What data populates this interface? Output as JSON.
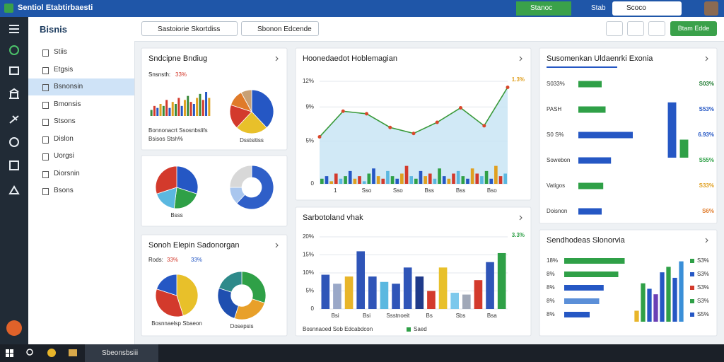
{
  "window": {
    "title": "Sentiol Etabtirbaesti",
    "tabs": [
      "Stanoc",
      "Stab",
      "Scoco"
    ]
  },
  "sidebar": {
    "title": "Bisnis",
    "items": [
      "Stiis",
      "Etgsis",
      "Bsnonsin",
      "Bmonsis",
      "Stsons",
      "Dislon",
      "Uorgsi",
      "Diorsnin",
      "Bsons"
    ],
    "selected": 2
  },
  "toolbar": {
    "dropdowns": [
      "Sastoiorie Skortdiss",
      "Sbonon Edcende"
    ],
    "button": "Btam Edde"
  },
  "taskbar": {
    "app": "Sbeonsbsiii"
  },
  "widgets": [
    {
      "title": "Sndcipne Bndiug",
      "texts": [
        {
          "text": "Snsnsth:",
          "color": "#222"
        },
        {
          "text": "33%",
          "color": "#d33a2c"
        },
        {
          "text": "Bonnonacrt Ssosnbslifs",
          "color": "#333"
        },
        {
          "text": "Bsisos Stsh%",
          "color": "#333"
        }
      ],
      "charts": [
        {
          "type": "bar",
          "values": [
            3,
            5,
            4,
            6,
            5,
            8,
            4,
            7,
            6,
            9,
            5,
            8,
            10,
            7,
            6,
            9,
            11,
            8,
            12,
            9
          ],
          "colors": [
            "#3a8a3a",
            "#d33a2c",
            "#2557c4",
            "#e0a020"
          ],
          "ylim": [
            0,
            12
          ]
        },
        {
          "type": "pie",
          "values": [
            38,
            24,
            18,
            12,
            8
          ],
          "colors": [
            "#2557c4",
            "#e8c02a",
            "#d33a2c",
            "#e07b2a",
            "#c8a074"
          ],
          "caption": "Dsstsitiss"
        }
      ]
    },
    {
      "title": "",
      "texts": [],
      "charts": [
        {
          "type": "pie",
          "values": [
            30,
            22,
            18,
            30
          ],
          "colors": [
            "#2557c4",
            "#2fa047",
            "#5bb8e0",
            "#d33a2c"
          ],
          "caption": "Bsss"
        },
        {
          "type": "pie",
          "donut": true,
          "values": [
            62,
            13,
            25
          ],
          "colors": [
            "#2f5fc8",
            "#a9c6ee",
            "#d8d8d8"
          ]
        }
      ]
    },
    {
      "title": "Sonoh Elepin Sadonorgan",
      "texts": [
        {
          "text": "Rods:",
          "color": "#222"
        },
        {
          "text": "33%",
          "color": "#d33a2c"
        },
        {
          "text": "33%",
          "color": "#2557c4"
        }
      ],
      "charts": [
        {
          "type": "pie",
          "values": [
            45,
            35,
            20
          ],
          "colors": [
            "#e8c02a",
            "#d33a2c",
            "#2557c4"
          ],
          "caption": "Bosnnaelsp Sbaeon"
        },
        {
          "type": "pie",
          "donut": true,
          "values": [
            30,
            25,
            25,
            20
          ],
          "colors": [
            "#2fa047",
            "#e8a02a",
            "#1f4fb0",
            "#2e8a8a"
          ],
          "caption": "Dosepsis"
        }
      ]
    },
    {
      "title": "Hoonedaedot Hoblemagian",
      "texts": [],
      "charts": [
        {
          "type": "line",
          "values": [
            5.5,
            8.5,
            8.2,
            6.6,
            5.9,
            7.2,
            8.9,
            6.8,
            11.3
          ],
          "color": "#3a9a3a",
          "fill": "#c6e3f4",
          "marker_color": "#d9482b",
          "ylim": [
            0,
            12
          ],
          "yticks": [
            0,
            {
              "value": 5,
              "label": "5%"
            },
            {
              "value": 9,
              "label": "9%"
            },
            {
              "value": 12,
              "label": "12%"
            }
          ],
          "x_labels": [
            "1",
            "Sso",
            "Sso",
            "Bss",
            "Bss",
            "Bso"
          ],
          "annotation": "1.3%",
          "annotation_color": "#e0a020"
        },
        {
          "type": "bar",
          "values": [
            2,
            3,
            1,
            4,
            2,
            3,
            5,
            2,
            3,
            1,
            4,
            6,
            3,
            2,
            5,
            3,
            2,
            4,
            7,
            3,
            2,
            5,
            3,
            4,
            2,
            6,
            3,
            2,
            4,
            5,
            3,
            2,
            6,
            4,
            3,
            5,
            2,
            7,
            3,
            4
          ],
          "colors": [
            "#2fa047",
            "#2557c4",
            "#e0a020",
            "#d33a2c",
            "#5bb8e0"
          ],
          "ylim": [
            0,
            40
          ]
        }
      ]
    },
    {
      "title": "Sarbotoland vhak",
      "texts": [
        {
          "text": "Bosnnaoed Sob Edcabdcon",
          "color": "#333"
        }
      ],
      "legend": [
        {
          "text": "Saed",
          "color": "#2fa047"
        }
      ],
      "charts": [
        {
          "type": "bar",
          "values": [
            9.5,
            7,
            9,
            16,
            9,
            7.5,
            7,
            11.5,
            9,
            5,
            11.5,
            4.5,
            4,
            8,
            13,
            15.5
          ],
          "colors": [
            "#2f55b8",
            "#9aa8c8",
            "#e8b52a",
            "#2f55b8",
            "#2f55b8",
            "#5bb8e0",
            "#2f55b8",
            "#2f55b8",
            "#1f3a8a",
            "#d33a2c",
            "#e8c02a",
            "#7cc8ec",
            "#a0a8b8",
            "#d33a2c",
            "#2f55b8",
            "#2fa047"
          ],
          "ylim": [
            0,
            20
          ],
          "yticks": [
            0,
            {
              "value": 5,
              "label": "5%"
            },
            {
              "value": 10,
              "label": "10%"
            },
            {
              "value": 15,
              "label": "15%"
            },
            {
              "value": 20,
              "label": "20%"
            }
          ],
          "x_labels": [
            "Bsi",
            "Bsi",
            "Ssstnoeit",
            "Bs",
            "Sbs",
            "Bsa"
          ],
          "annotation": "3.3%",
          "annotation_color": "#2fa047"
        }
      ]
    },
    {
      "title": "Susomenkan Uldaenrki Exonia",
      "texts": [],
      "charts": [
        {
          "type": "hbar_rows",
          "xlim": [
            0,
            100
          ],
          "rows": [
            {
              "label": "S033%",
              "value": 30,
              "color": "#2fa047",
              "pct": "S03%",
              "pct_color": "#1c7a2e"
            },
            {
              "label": "PASH",
              "value": 35,
              "color": "#2fa047",
              "pct": "S53%",
              "pct_color": "#2557c4"
            },
            {
              "label": "S0 S%",
              "value": 70,
              "color": "#2557c4",
              "pct": "6.93%",
              "pct_color": "#2557c4"
            },
            {
              "label": "Sowebon",
              "value": 42,
              "color": "#2557c4",
              "pct": "S55%",
              "pct_color": "#2fa047"
            },
            {
              "label": "Vatigos",
              "value": 32,
              "color": "#2fa047",
              "pct": "S33%",
              "pct_color": "#e0a020"
            },
            {
              "label": "Doisnon",
              "value": 30,
              "color": "#2557c4",
              "pct": "S6%",
              "pct_color": "#e07b2a"
            }
          ]
        },
        {
          "type": "bar",
          "values": [
            92,
            30
          ],
          "colors": [
            "#2557c4",
            "#2fa047"
          ],
          "ylim": [
            0,
            100
          ]
        }
      ]
    },
    {
      "title": "Sendhodeas Slonorvia",
      "texts": [],
      "legend": [
        {
          "text": "S3%",
          "color": "#2fa047"
        },
        {
          "text": "S3%",
          "color": "#2557c4"
        },
        {
          "text": "S3%",
          "color": "#d33a2c"
        },
        {
          "text": "S3%",
          "color": "#2fa047"
        },
        {
          "text": "S5%",
          "color": "#2557c4"
        }
      ],
      "charts": [
        {
          "type": "hbar_rows",
          "xlim": [
            0,
            100
          ],
          "rows": [
            {
              "label": "18%",
              "value": 95,
              "color": "#2fa047"
            },
            {
              "label": "8%",
              "value": 85,
              "color": "#2fa047"
            },
            {
              "label": "8%",
              "value": 62,
              "color": "#2557c4"
            },
            {
              "label": "8%",
              "value": 55,
              "color": "#5b8fd8"
            },
            {
              "label": "8%",
              "value": 40,
              "color": "#2557c4"
            }
          ]
        },
        {
          "type": "bar",
          "values": [
            4,
            14,
            12,
            10,
            18,
            20,
            16,
            22
          ],
          "colors": [
            "#e8b52a",
            "#2fa047",
            "#2557c4",
            "#6a3fb5",
            "#2557c4",
            "#2fa047",
            "#2557c4",
            "#3a8fd8"
          ],
          "ylim": [
            0,
            25
          ]
        }
      ]
    }
  ]
}
